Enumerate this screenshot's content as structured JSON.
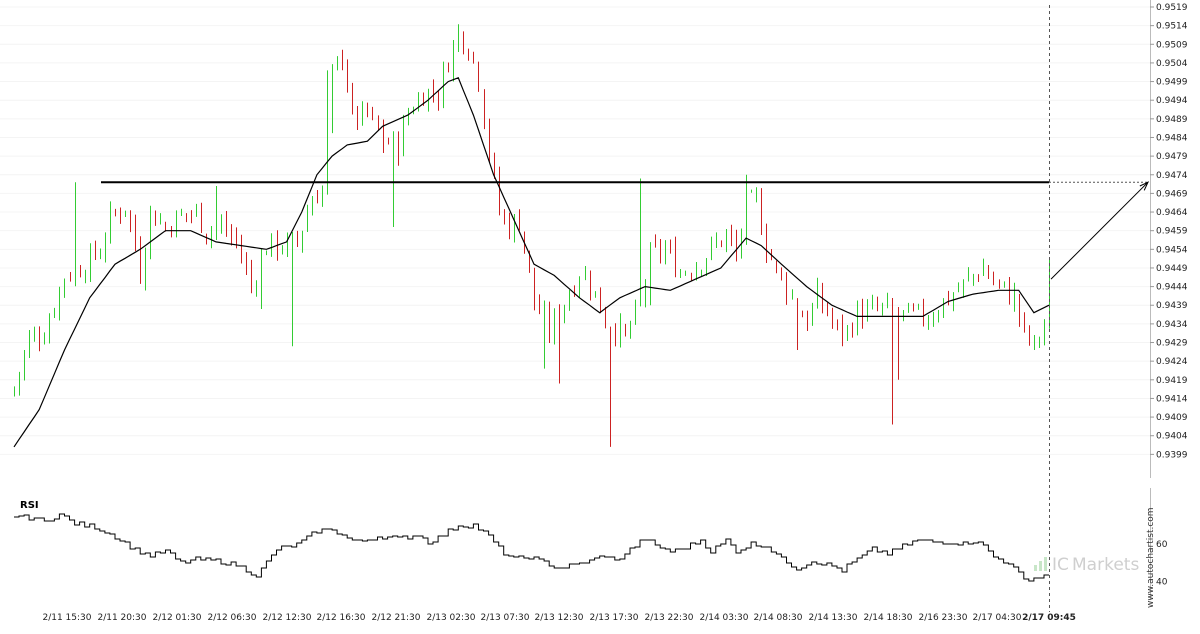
{
  "chart_data": {
    "type": "candlestick",
    "title": "",
    "xlabel": "",
    "ylabel": "",
    "ylim": [
      0.9394,
      0.9519
    ],
    "y_ticks": [
      "0.9519",
      "0.9514",
      "0.9509",
      "0.9504",
      "0.9499",
      "0.9494",
      "0.9489",
      "0.9484",
      "0.9479",
      "0.9474",
      "0.9469",
      "0.9464",
      "0.9459",
      "0.9454",
      "0.9449",
      "0.9444",
      "0.9439",
      "0.9434",
      "0.9429",
      "0.9424",
      "0.9419",
      "0.9414",
      "0.9409",
      "0.9404",
      "0.9399"
    ],
    "x_ticks": [
      "2/11 15:30",
      "2/11 20:30",
      "2/12 01:30",
      "2/12 06:30",
      "2/12 12:30",
      "2/12 16:30",
      "2/12 21:30",
      "2/13 02:30",
      "2/13 07:30",
      "2/13 12:30",
      "2/13 17:30",
      "2/13 22:30",
      "2/14 03:30",
      "2/14 08:30",
      "2/14 13:30",
      "2/14 18:30",
      "2/16 23:30",
      "2/17 04:30",
      "2/17 09:45"
    ],
    "current_time_label": "2/17 09:45",
    "colors": {
      "up": "#33cc33",
      "down": "#cc2222",
      "ma": "#000000",
      "level": "#000000",
      "rsi": "#000000"
    },
    "resistance_level": 0.9472,
    "ma_anchors": [
      [
        0,
        0.9401
      ],
      [
        5,
        0.9411
      ],
      [
        10,
        0.9427
      ],
      [
        15,
        0.9441
      ],
      [
        20,
        0.945
      ],
      [
        25,
        0.9454
      ],
      [
        30,
        0.9459
      ],
      [
        35,
        0.9459
      ],
      [
        40,
        0.9456
      ],
      [
        45,
        0.9455
      ],
      [
        50,
        0.9454
      ],
      [
        54,
        0.9456
      ],
      [
        57,
        0.9464
      ],
      [
        60,
        0.9474
      ],
      [
        63,
        0.9479
      ],
      [
        66,
        0.9482
      ],
      [
        70,
        0.9483
      ],
      [
        73,
        0.9487
      ],
      [
        78,
        0.949
      ],
      [
        82,
        0.9494
      ],
      [
        86,
        0.9499
      ],
      [
        88,
        0.95
      ],
      [
        91,
        0.949
      ],
      [
        95,
        0.9474
      ],
      [
        100,
        0.9459
      ],
      [
        103,
        0.945
      ],
      [
        107,
        0.9447
      ],
      [
        112,
        0.9441
      ],
      [
        116,
        0.9437
      ],
      [
        120,
        0.9441
      ],
      [
        125,
        0.9444
      ],
      [
        130,
        0.9443
      ],
      [
        135,
        0.9446
      ],
      [
        140,
        0.9449
      ],
      [
        145,
        0.9457
      ],
      [
        148,
        0.9455
      ],
      [
        152,
        0.945
      ],
      [
        157,
        0.9444
      ],
      [
        162,
        0.9439
      ],
      [
        167,
        0.9436
      ],
      [
        172,
        0.9436
      ],
      [
        176,
        0.9436
      ],
      [
        180,
        0.9436
      ],
      [
        185,
        0.944
      ],
      [
        190,
        0.9442
      ],
      [
        195,
        0.9443
      ],
      [
        199,
        0.9443
      ],
      [
        202,
        0.9437
      ],
      [
        205,
        0.9439
      ]
    ],
    "price_anchors": [
      [
        0,
        0.9417
      ],
      [
        3,
        0.943
      ],
      [
        6,
        0.9432
      ],
      [
        10,
        0.9447
      ],
      [
        14,
        0.945
      ],
      [
        17,
        0.9454
      ],
      [
        19,
        0.9462
      ],
      [
        22,
        0.9466
      ],
      [
        24,
        0.9455
      ],
      [
        25,
        0.9448
      ],
      [
        27,
        0.9464
      ],
      [
        30,
        0.946
      ],
      [
        33,
        0.9463
      ],
      [
        36,
        0.9464
      ],
      [
        38,
        0.9459
      ],
      [
        41,
        0.946
      ],
      [
        44,
        0.9456
      ],
      [
        47,
        0.9444
      ],
      [
        50,
        0.9455
      ],
      [
        53,
        0.9455
      ],
      [
        56,
        0.9456
      ],
      [
        59,
        0.9468
      ],
      [
        61,
        0.947
      ],
      [
        63,
        0.95
      ],
      [
        65,
        0.9507
      ],
      [
        67,
        0.9489
      ],
      [
        70,
        0.949
      ],
      [
        73,
        0.9483
      ],
      [
        76,
        0.9482
      ],
      [
        78,
        0.9491
      ],
      [
        81,
        0.9496
      ],
      [
        84,
        0.9496
      ],
      [
        86,
        0.9505
      ],
      [
        88,
        0.9512
      ],
      [
        90,
        0.9509
      ],
      [
        92,
        0.95
      ],
      [
        94,
        0.948
      ],
      [
        96,
        0.9464
      ],
      [
        98,
        0.946
      ],
      [
        100,
        0.9462
      ],
      [
        103,
        0.944
      ],
      [
        106,
        0.9432
      ],
      [
        109,
        0.944
      ],
      [
        112,
        0.9448
      ],
      [
        114,
        0.9445
      ],
      [
        117,
        0.9435
      ],
      [
        119,
        0.9433
      ],
      [
        121,
        0.943
      ],
      [
        124,
        0.944
      ],
      [
        126,
        0.9452
      ],
      [
        129,
        0.9454
      ],
      [
        132,
        0.9448
      ],
      [
        135,
        0.945
      ],
      [
        138,
        0.9454
      ],
      [
        141,
        0.9458
      ],
      [
        143,
        0.9452
      ],
      [
        145,
        0.9465
      ],
      [
        147,
        0.9467
      ],
      [
        149,
        0.9455
      ],
      [
        151,
        0.9448
      ],
      [
        153,
        0.9444
      ],
      [
        155,
        0.9438
      ],
      [
        157,
        0.9435
      ],
      [
        159,
        0.9441
      ],
      [
        161,
        0.9437
      ],
      [
        163,
        0.9432
      ],
      [
        165,
        0.9432
      ],
      [
        167,
        0.9437
      ],
      [
        169,
        0.9437
      ],
      [
        172,
        0.9438
      ],
      [
        175,
        0.9436
      ],
      [
        178,
        0.9436
      ],
      [
        181,
        0.9436
      ],
      [
        184,
        0.944
      ],
      [
        187,
        0.9443
      ],
      [
        190,
        0.9447
      ],
      [
        192,
        0.9449
      ],
      [
        194,
        0.9445
      ],
      [
        196,
        0.9443
      ],
      [
        198,
        0.9441
      ],
      [
        200,
        0.9431
      ],
      [
        202,
        0.9428
      ],
      [
        204,
        0.9434
      ],
      [
        205,
        0.9447
      ]
    ],
    "spikes": [
      {
        "i": 12,
        "hi": 0.9472
      },
      {
        "i": 40,
        "hi": 0.9471
      },
      {
        "i": 49,
        "lo": 0.9438
      },
      {
        "i": 55,
        "lo": 0.9428
      },
      {
        "i": 62,
        "hi": 0.9502
      },
      {
        "i": 75,
        "lo": 0.946
      },
      {
        "i": 105,
        "lo": 0.9422
      },
      {
        "i": 108,
        "lo": 0.9418
      },
      {
        "i": 118,
        "lo": 0.9401
      },
      {
        "i": 124,
        "hi": 0.9473
      },
      {
        "i": 126,
        "lo": 0.9439
      },
      {
        "i": 145,
        "hi": 0.9474
      },
      {
        "i": 155,
        "lo": 0.9427
      },
      {
        "i": 174,
        "lo": 0.9407
      },
      {
        "i": 175,
        "lo": 0.9419
      },
      {
        "i": 202,
        "lo": 0.9427
      }
    ],
    "forecast_target": 0.9472,
    "rsi": {
      "label": "RSI",
      "ticks": [
        "60",
        "40"
      ],
      "ylim": [
        30,
        90
      ],
      "anchors": [
        [
          0,
          75
        ],
        [
          4,
          74
        ],
        [
          6,
          72
        ],
        [
          9,
          76
        ],
        [
          12,
          71
        ],
        [
          16,
          69
        ],
        [
          20,
          64
        ],
        [
          24,
          57
        ],
        [
          27,
          54
        ],
        [
          30,
          56
        ],
        [
          33,
          50
        ],
        [
          36,
          52
        ],
        [
          40,
          51
        ],
        [
          44,
          49
        ],
        [
          48,
          43
        ],
        [
          52,
          57
        ],
        [
          56,
          60
        ],
        [
          60,
          67
        ],
        [
          63,
          68
        ],
        [
          66,
          63
        ],
        [
          68,
          61
        ],
        [
          72,
          64
        ],
        [
          76,
          63
        ],
        [
          80,
          65
        ],
        [
          82,
          61
        ],
        [
          85,
          65
        ],
        [
          88,
          70
        ],
        [
          91,
          70
        ],
        [
          94,
          64
        ],
        [
          97,
          55
        ],
        [
          99,
          52
        ],
        [
          102,
          53
        ],
        [
          105,
          50
        ],
        [
          108,
          47
        ],
        [
          111,
          49
        ],
        [
          114,
          51
        ],
        [
          117,
          54
        ],
        [
          119,
          51
        ],
        [
          122,
          57
        ],
        [
          125,
          63
        ],
        [
          127,
          59
        ],
        [
          130,
          56
        ],
        [
          133,
          58
        ],
        [
          136,
          62
        ],
        [
          138,
          56
        ],
        [
          141,
          62
        ],
        [
          143,
          56
        ],
        [
          146,
          60
        ],
        [
          149,
          59
        ],
        [
          152,
          52
        ],
        [
          155,
          47
        ],
        [
          158,
          51
        ],
        [
          161,
          49
        ],
        [
          164,
          46
        ],
        [
          167,
          52
        ],
        [
          170,
          57
        ],
        [
          173,
          55
        ],
        [
          176,
          59
        ],
        [
          179,
          62
        ],
        [
          182,
          61
        ],
        [
          185,
          61
        ],
        [
          188,
          60
        ],
        [
          191,
          62
        ],
        [
          194,
          53
        ],
        [
          197,
          50
        ],
        [
          200,
          41
        ],
        [
          203,
          42
        ],
        [
          205,
          44
        ]
      ]
    }
  },
  "watermark": {
    "brand": "Markets",
    "brand_prefix": "IC",
    "vertical": "www.autochartist.com"
  },
  "rsi_label_text": "RSI",
  "current_time_text": "2/17 09:45"
}
